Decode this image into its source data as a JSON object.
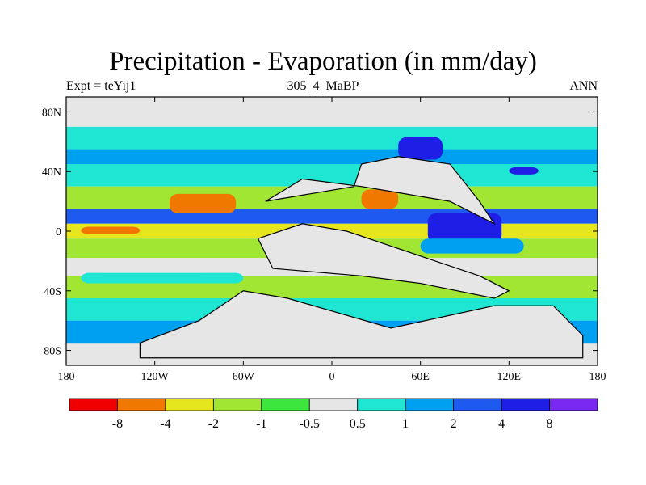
{
  "chart_data": {
    "type": "heatmap",
    "title": "Precipitation - Evaporation (in mm/day)",
    "left_label": "Expt = teYij1",
    "center_label": "305_4_MaBP",
    "right_label": "ANN",
    "x_ticks": [
      "180",
      "120W",
      "60W",
      "0",
      "60E",
      "120E",
      "180"
    ],
    "x_tick_values": [
      -180,
      -120,
      -60,
      0,
      60,
      120,
      180
    ],
    "y_ticks": [
      "80N",
      "40N",
      "0",
      "40S",
      "80S"
    ],
    "y_tick_values": [
      80,
      40,
      0,
      -40,
      -80
    ],
    "xlim": [
      -180,
      180
    ],
    "ylim": [
      -90,
      90
    ],
    "colorbar": {
      "colors": [
        "#f00000",
        "#f07800",
        "#e6e61e",
        "#a0e632",
        "#3ce63c",
        "#e6e6e6",
        "#1ee6d2",
        "#00a0f0",
        "#1e5af0",
        "#1e1ee6",
        "#7828f0"
      ],
      "labels": [
        "-8",
        "-4",
        "-2",
        "-1",
        "-0.5",
        "0.5",
        "1",
        "2",
        "4",
        "8"
      ]
    },
    "field_bands": [
      {
        "lat": [
          70,
          90
        ],
        "value": 0
      },
      {
        "lat": [
          55,
          70
        ],
        "value": 0.7
      },
      {
        "lat": [
          45,
          55
        ],
        "value": 1.5
      },
      {
        "lat": [
          30,
          45
        ],
        "value": 0.8
      },
      {
        "lat": [
          15,
          30
        ],
        "value": -1.5
      },
      {
        "lat": [
          5,
          15
        ],
        "value": 3
      },
      {
        "lat": [
          -5,
          5
        ],
        "value": -2.5
      },
      {
        "lat": [
          -18,
          -5
        ],
        "value": -1.5
      },
      {
        "lat": [
          -30,
          -18
        ],
        "value": 0
      },
      {
        "lat": [
          -45,
          -30
        ],
        "value": -1.2
      },
      {
        "lat": [
          -60,
          -45
        ],
        "value": 0.8
      },
      {
        "lat": [
          -75,
          -60
        ],
        "value": 1.2
      },
      {
        "lat": [
          -90,
          -75
        ],
        "value": 0
      }
    ],
    "field_patches": [
      {
        "lon": [
          -110,
          -65
        ],
        "lat": [
          12,
          25
        ],
        "value": -5
      },
      {
        "lon": [
          -170,
          -130
        ],
        "lat": [
          -2,
          3
        ],
        "value": -5
      },
      {
        "lon": [
          20,
          45
        ],
        "lat": [
          15,
          28
        ],
        "value": -5
      },
      {
        "lon": [
          65,
          115
        ],
        "lat": [
          -8,
          12
        ],
        "value": 4.5
      },
      {
        "lon": [
          60,
          130
        ],
        "lat": [
          -15,
          -5
        ],
        "value": 1.5
      },
      {
        "lon": [
          -170,
          -60
        ],
        "lat": [
          -35,
          -28
        ],
        "value": 0.7
      },
      {
        "lon": [
          45,
          75
        ],
        "lat": [
          48,
          63
        ],
        "value": 4.5
      },
      {
        "lon": [
          120,
          140
        ],
        "lat": [
          38,
          43
        ],
        "value": 5
      }
    ],
    "continents": [
      {
        "name": "laurasia",
        "lon": [
          -45,
          15,
          20,
          45,
          80,
          100,
          110,
          80,
          50,
          20,
          -20,
          -45
        ],
        "lat": [
          20,
          30,
          45,
          50,
          45,
          20,
          5,
          20,
          25,
          30,
          35,
          20
        ]
      },
      {
        "name": "gondwana",
        "lon": [
          -50,
          -20,
          10,
          40,
          70,
          100,
          120,
          110,
          60,
          20,
          -40,
          -50
        ],
        "lat": [
          -5,
          5,
          0,
          -10,
          -20,
          -30,
          -40,
          -45,
          -35,
          -30,
          -25,
          -5
        ]
      },
      {
        "name": "south-polar",
        "lon": [
          -130,
          -90,
          -60,
          -30,
          40,
          110,
          150,
          170,
          170,
          -130
        ],
        "lat": [
          -75,
          -60,
          -40,
          -45,
          -65,
          -50,
          -50,
          -70,
          -85,
          -85
        ]
      }
    ]
  }
}
